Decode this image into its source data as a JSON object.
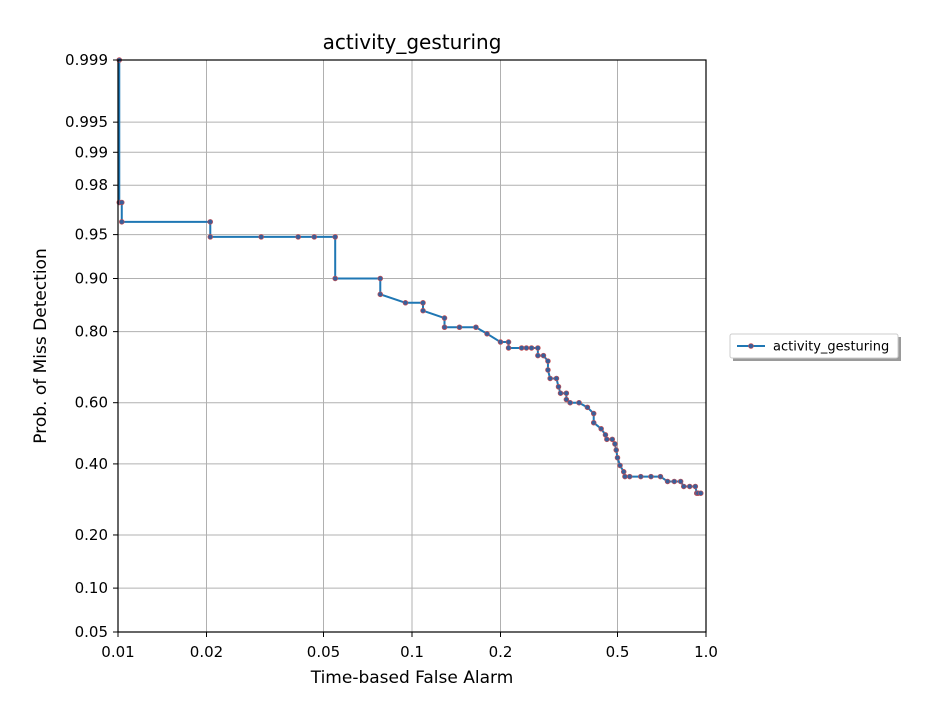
{
  "chart_data": {
    "type": "line",
    "title": "activity_gesturing",
    "xlabel": "Time-based False Alarm",
    "ylabel": "Prob. of Miss Detection",
    "x_scale": "log",
    "y_scale": "probit",
    "xlim": [
      0.01,
      1.0
    ],
    "ylim": [
      0.05,
      0.999
    ],
    "xticks": [
      {
        "value": 0.01,
        "label": "0.01"
      },
      {
        "value": 0.02,
        "label": "0.02"
      },
      {
        "value": 0.05,
        "label": "0.05"
      },
      {
        "value": 0.1,
        "label": "0.1"
      },
      {
        "value": 0.2,
        "label": "0.2"
      },
      {
        "value": 0.5,
        "label": "0.5"
      },
      {
        "value": 1.0,
        "label": "1.0"
      }
    ],
    "yticks": [
      {
        "value": 0.05,
        "label": "0.05"
      },
      {
        "value": 0.1,
        "label": "0.10"
      },
      {
        "value": 0.2,
        "label": "0.20"
      },
      {
        "value": 0.4,
        "label": "0.40"
      },
      {
        "value": 0.6,
        "label": "0.60"
      },
      {
        "value": 0.8,
        "label": "0.80"
      },
      {
        "value": 0.9,
        "label": "0.90"
      },
      {
        "value": 0.95,
        "label": "0.95"
      },
      {
        "value": 0.98,
        "label": "0.98"
      },
      {
        "value": 0.99,
        "label": "0.99"
      },
      {
        "value": 0.995,
        "label": "0.995"
      },
      {
        "value": 0.999,
        "label": "0.999"
      }
    ],
    "grid": true,
    "legend": {
      "position": "right",
      "entries": [
        "activity_gesturing"
      ]
    },
    "colors": {
      "line": "#1f77b4",
      "marker": "#3a5f9a",
      "marker_edge": "#c44e52"
    },
    "series": [
      {
        "name": "activity_gesturing",
        "x": [
          0.0101,
          0.0101,
          0.0103,
          0.0103,
          0.0206,
          0.0206,
          0.0307,
          0.041,
          0.0465,
          0.0548,
          0.0548,
          0.078,
          0.078,
          0.095,
          0.109,
          0.109,
          0.129,
          0.129,
          0.145,
          0.165,
          0.18,
          0.2,
          0.213,
          0.213,
          0.236,
          0.245,
          0.255,
          0.268,
          0.268,
          0.28,
          0.29,
          0.29,
          0.295,
          0.31,
          0.315,
          0.32,
          0.335,
          0.335,
          0.345,
          0.37,
          0.395,
          0.415,
          0.415,
          0.44,
          0.455,
          0.46,
          0.48,
          0.49,
          0.495,
          0.5,
          0.51,
          0.525,
          0.53,
          0.55,
          0.6,
          0.65,
          0.7,
          0.74,
          0.78,
          0.82,
          0.84,
          0.88,
          0.92,
          0.93,
          0.94,
          0.96
        ],
        "y": [
          0.999,
          0.972,
          0.972,
          0.96,
          0.96,
          0.948,
          0.948,
          0.948,
          0.948,
          0.948,
          0.9,
          0.9,
          0.875,
          0.86,
          0.86,
          0.845,
          0.83,
          0.81,
          0.81,
          0.81,
          0.795,
          0.775,
          0.775,
          0.76,
          0.76,
          0.76,
          0.76,
          0.76,
          0.74,
          0.74,
          0.725,
          0.7,
          0.675,
          0.675,
          0.65,
          0.63,
          0.63,
          0.61,
          0.6,
          0.6,
          0.585,
          0.565,
          0.535,
          0.515,
          0.495,
          0.48,
          0.48,
          0.465,
          0.445,
          0.42,
          0.395,
          0.375,
          0.36,
          0.36,
          0.36,
          0.36,
          0.36,
          0.345,
          0.345,
          0.345,
          0.33,
          0.33,
          0.33,
          0.31,
          0.31,
          0.31
        ]
      }
    ]
  }
}
